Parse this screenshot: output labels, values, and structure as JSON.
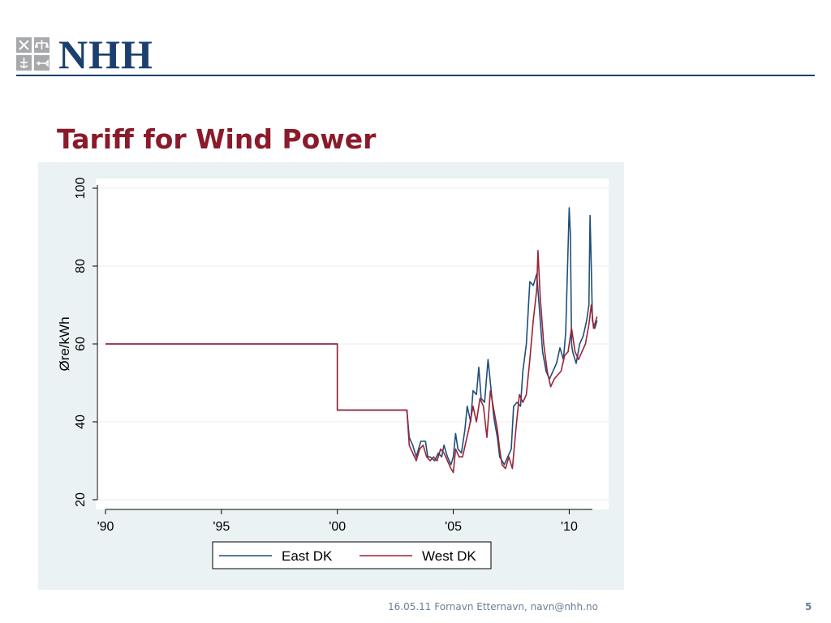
{
  "header": {
    "logo_text": "NHH"
  },
  "slide": {
    "title": "Tariff for Wind Power",
    "footer": "16.05.11   Fornavn Etternavn, navn@nhh.no",
    "page_number": "5"
  },
  "colors": {
    "brand": "#1b3f6e",
    "title": "#8b1a2b",
    "panel_background": "#eaf2f3",
    "east_dk": "#1f4e79",
    "west_dk": "#9b2335"
  },
  "chart_data": {
    "type": "line",
    "title": "",
    "xlabel": "",
    "ylabel": "Øre/kWh",
    "xlim": [
      1990,
      2011.5
    ],
    "ylim": [
      20,
      100
    ],
    "x_ticks": [
      1990,
      1995,
      2000,
      2005,
      2010
    ],
    "x_tick_labels": [
      "'90",
      "'95",
      "'00",
      "'05",
      "'10"
    ],
    "y_ticks": [
      20,
      40,
      60,
      80,
      100
    ],
    "y_tick_labels": [
      "20",
      "40",
      "60",
      "80",
      "100"
    ],
    "grid": "horizontal",
    "legend": "bottom",
    "series": [
      {
        "name": "East DK",
        "color": "#1f4e79",
        "x": [
          1990.0,
          2000.0,
          2000.0,
          2003.0,
          2003.1,
          2003.25,
          2003.4,
          2003.6,
          2003.8,
          2003.9,
          2004.0,
          2004.2,
          2004.35,
          2004.5,
          2004.6,
          2004.75,
          2004.9,
          2005.0,
          2005.1,
          2005.2,
          2005.35,
          2005.5,
          2005.6,
          2005.75,
          2005.85,
          2006.0,
          2006.1,
          2006.2,
          2006.35,
          2006.5,
          2006.6,
          2006.75,
          2006.9,
          2007.0,
          2007.1,
          2007.2,
          2007.35,
          2007.5,
          2007.6,
          2007.75,
          2007.9,
          2008.0,
          2008.15,
          2008.3,
          2008.45,
          2008.6,
          2008.7,
          2008.85,
          2009.0,
          2009.15,
          2009.3,
          2009.45,
          2009.6,
          2009.75,
          2009.85,
          2010.0,
          2010.05,
          2010.1,
          2010.15,
          2010.3,
          2010.45,
          2010.6,
          2010.75,
          2010.85,
          2010.9,
          2010.95,
          2011.0,
          2011.1,
          2011.2
        ],
        "y": [
          60,
          60,
          43,
          43,
          36,
          34,
          31,
          35,
          35,
          31,
          31,
          30,
          32,
          31,
          34,
          31,
          29,
          31,
          37,
          33,
          32,
          38,
          44,
          40,
          48,
          47,
          54,
          46,
          45,
          56,
          50,
          41,
          36,
          31,
          30,
          29,
          31,
          33,
          44,
          45,
          44,
          53,
          60,
          76,
          75,
          78,
          70,
          58,
          53,
          51,
          53,
          55,
          59,
          56,
          63,
          95,
          88,
          60,
          58,
          55,
          60,
          62,
          66,
          70,
          93,
          80,
          66,
          64,
          66
        ]
      },
      {
        "name": "West DK",
        "color": "#9b2335",
        "x": [
          1990.0,
          2000.0,
          2000.0,
          2003.0,
          2003.1,
          2003.25,
          2003.4,
          2003.55,
          2003.7,
          2003.85,
          2004.0,
          2004.15,
          2004.3,
          2004.45,
          2004.6,
          2004.75,
          2004.9,
          2005.0,
          2005.1,
          2005.25,
          2005.4,
          2005.55,
          2005.7,
          2005.85,
          2006.0,
          2006.15,
          2006.3,
          2006.45,
          2006.6,
          2006.75,
          2006.9,
          2007.0,
          2007.1,
          2007.25,
          2007.4,
          2007.55,
          2007.7,
          2007.85,
          2008.0,
          2008.15,
          2008.3,
          2008.45,
          2008.6,
          2008.65,
          2008.75,
          2008.9,
          2009.05,
          2009.2,
          2009.35,
          2009.5,
          2009.65,
          2009.8,
          2009.95,
          2010.1,
          2010.25,
          2010.4,
          2010.55,
          2010.7,
          2010.85,
          2010.95,
          2011.05,
          2011.2
        ],
        "y": [
          60,
          60,
          43,
          43,
          34,
          32,
          30,
          33,
          34,
          31,
          30,
          31,
          30,
          33,
          32,
          30,
          28,
          27,
          33,
          31,
          31,
          35,
          39,
          44,
          40,
          46,
          44,
          36,
          48,
          43,
          38,
          33,
          29,
          28,
          31,
          28,
          38,
          47,
          45,
          47,
          56,
          66,
          74,
          84,
          72,
          60,
          53,
          49,
          51,
          52,
          53,
          57,
          58,
          64,
          58,
          56,
          58,
          60,
          65,
          70,
          64,
          67
        ]
      }
    ]
  }
}
